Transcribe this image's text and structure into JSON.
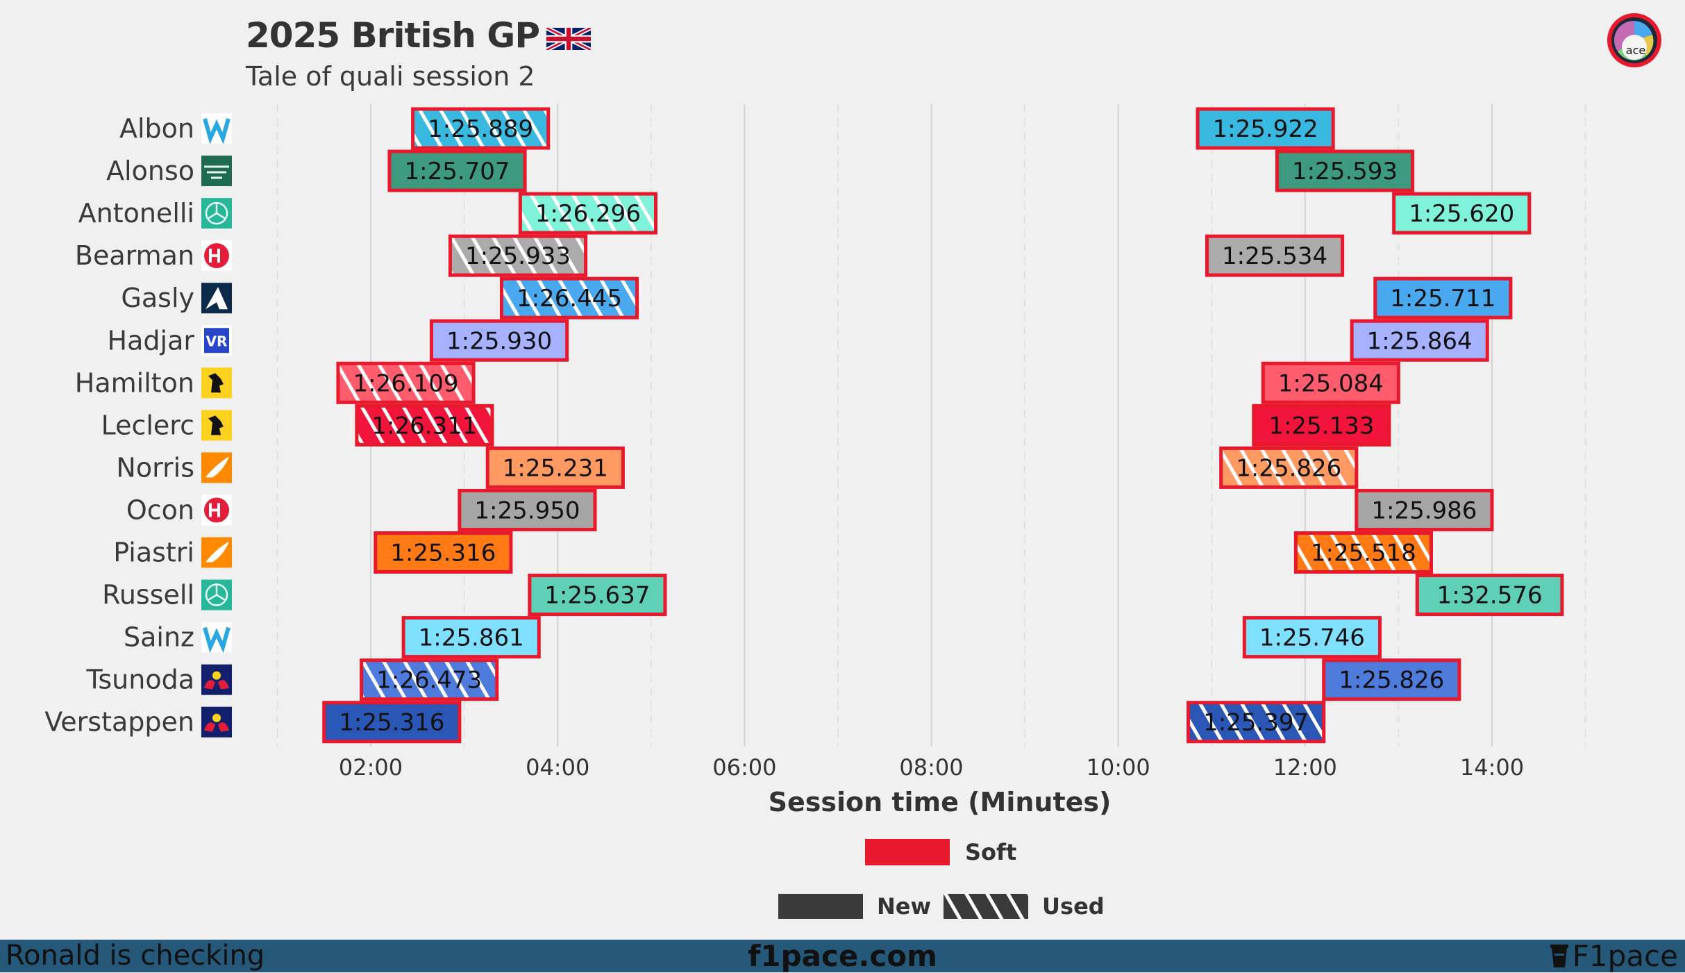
{
  "header": {
    "title": "2025 British GP",
    "subtitle": "Tale of quali session 2",
    "logo_text": "ace"
  },
  "legend": {
    "compound_label": "Soft",
    "compound_color": "#e8192c",
    "new_label": "New",
    "used_label": "Used"
  },
  "footer": {
    "left": "Ronald is checking",
    "center": "f1pace.com",
    "right": "F1pace"
  },
  "chart_data": {
    "type": "timeline",
    "title": "2025 British GP",
    "subtitle": "Tale of quali session 2",
    "xlabel": "Session time (Minutes)",
    "xlim": [
      0.9,
      15.1
    ],
    "xticks": [
      2,
      4,
      6,
      8,
      10,
      12,
      14
    ],
    "xtick_labels": [
      "02:00",
      "04:00",
      "06:00",
      "08:00",
      "10:00",
      "12:00",
      "14:00"
    ],
    "grid": true,
    "outline_color": "#e8192c",
    "drivers": [
      {
        "name": "Albon",
        "team": "Williams",
        "color": "#39b9e0",
        "laps": [
          {
            "start": 2.45,
            "end": 3.9,
            "time": "1:25.889",
            "compound": "Soft",
            "used": true
          },
          {
            "start": 10.85,
            "end": 12.3,
            "time": "1:25.922",
            "compound": "Soft",
            "used": false
          }
        ]
      },
      {
        "name": "Alonso",
        "team": "Aston Martin",
        "color": "#3d9a7e",
        "laps": [
          {
            "start": 2.2,
            "end": 3.65,
            "time": "1:25.707",
            "compound": "Soft",
            "used": false
          },
          {
            "start": 11.7,
            "end": 13.15,
            "time": "1:25.593",
            "compound": "Soft",
            "used": false
          }
        ]
      },
      {
        "name": "Antonelli",
        "team": "Mercedes",
        "color": "#7ff2d9",
        "laps": [
          {
            "start": 3.6,
            "end": 5.05,
            "time": "1:26.296",
            "compound": "Soft",
            "used": true
          },
          {
            "start": 12.95,
            "end": 14.4,
            "time": "1:25.620",
            "compound": "Soft",
            "used": false
          }
        ]
      },
      {
        "name": "Bearman",
        "team": "Haas",
        "color": "#ababab",
        "laps": [
          {
            "start": 2.85,
            "end": 4.3,
            "time": "1:25.933",
            "compound": "Soft",
            "used": true
          },
          {
            "start": 10.95,
            "end": 12.4,
            "time": "1:25.534",
            "compound": "Soft",
            "used": false
          }
        ]
      },
      {
        "name": "Gasly",
        "team": "Alpine",
        "color": "#4aa8ee",
        "laps": [
          {
            "start": 3.4,
            "end": 4.85,
            "time": "1:26.445",
            "compound": "Soft",
            "used": true
          },
          {
            "start": 12.75,
            "end": 14.2,
            "time": "1:25.711",
            "compound": "Soft",
            "used": false
          }
        ]
      },
      {
        "name": "Hadjar",
        "team": "Racing Bulls",
        "color": "#a6b2ff",
        "laps": [
          {
            "start": 2.65,
            "end": 4.1,
            "time": "1:25.930",
            "compound": "Soft",
            "used": false
          },
          {
            "start": 12.5,
            "end": 13.95,
            "time": "1:25.864",
            "compound": "Soft",
            "used": false
          }
        ]
      },
      {
        "name": "Hamilton",
        "team": "Ferrari",
        "color": "#ff5c6e",
        "laps": [
          {
            "start": 1.65,
            "end": 3.1,
            "time": "1:26.109",
            "compound": "Soft",
            "used": true
          },
          {
            "start": 11.55,
            "end": 13.0,
            "time": "1:25.084",
            "compound": "Soft",
            "used": false
          }
        ]
      },
      {
        "name": "Leclerc",
        "team": "Ferrari",
        "color": "#f2153b",
        "laps": [
          {
            "start": 1.85,
            "end": 3.3,
            "time": "1:26.311",
            "compound": "Soft",
            "used": true
          },
          {
            "start": 11.45,
            "end": 12.9,
            "time": "1:25.133",
            "compound": "Soft",
            "used": false
          }
        ]
      },
      {
        "name": "Norris",
        "team": "McLaren",
        "color": "#ff9a63",
        "laps": [
          {
            "start": 3.25,
            "end": 4.7,
            "time": "1:25.231",
            "compound": "Soft",
            "used": false
          },
          {
            "start": 11.1,
            "end": 12.55,
            "time": "1:25.826",
            "compound": "Soft",
            "used": true
          }
        ]
      },
      {
        "name": "Ocon",
        "team": "Haas",
        "color": "#a6a6a6",
        "laps": [
          {
            "start": 2.95,
            "end": 4.4,
            "time": "1:25.950",
            "compound": "Soft",
            "used": false
          },
          {
            "start": 12.55,
            "end": 14.0,
            "time": "1:25.986",
            "compound": "Soft",
            "used": false
          }
        ]
      },
      {
        "name": "Piastri",
        "team": "McLaren",
        "color": "#ff7a14",
        "laps": [
          {
            "start": 2.05,
            "end": 3.5,
            "time": "1:25.316",
            "compound": "Soft",
            "used": false
          },
          {
            "start": 11.9,
            "end": 13.35,
            "time": "1:25.518",
            "compound": "Soft",
            "used": true
          }
        ]
      },
      {
        "name": "Russell",
        "team": "Mercedes",
        "color": "#5fcfb6",
        "laps": [
          {
            "start": 3.7,
            "end": 5.15,
            "time": "1:25.637",
            "compound": "Soft",
            "used": false
          },
          {
            "start": 13.2,
            "end": 14.75,
            "time": "1:32.576",
            "compound": "Soft",
            "used": false
          }
        ]
      },
      {
        "name": "Sainz",
        "team": "Williams",
        "color": "#7fe0ff",
        "laps": [
          {
            "start": 2.35,
            "end": 3.8,
            "time": "1:25.861",
            "compound": "Soft",
            "used": false
          },
          {
            "start": 11.35,
            "end": 12.8,
            "time": "1:25.746",
            "compound": "Soft",
            "used": false
          }
        ]
      },
      {
        "name": "Tsunoda",
        "team": "Red Bull Racing",
        "color": "#4f7bdc",
        "laps": [
          {
            "start": 1.9,
            "end": 3.35,
            "time": "1:26.473",
            "compound": "Soft",
            "used": true
          },
          {
            "start": 12.2,
            "end": 13.65,
            "time": "1:25.826",
            "compound": "Soft",
            "used": false
          }
        ]
      },
      {
        "name": "Verstappen",
        "team": "Red Bull Racing",
        "color": "#2a56b5",
        "laps": [
          {
            "start": 1.5,
            "end": 2.95,
            "time": "1:25.316",
            "compound": "Soft",
            "used": false
          },
          {
            "start": 10.75,
            "end": 12.2,
            "time": "1:25.397",
            "compound": "Soft",
            "used": true
          }
        ]
      }
    ]
  }
}
